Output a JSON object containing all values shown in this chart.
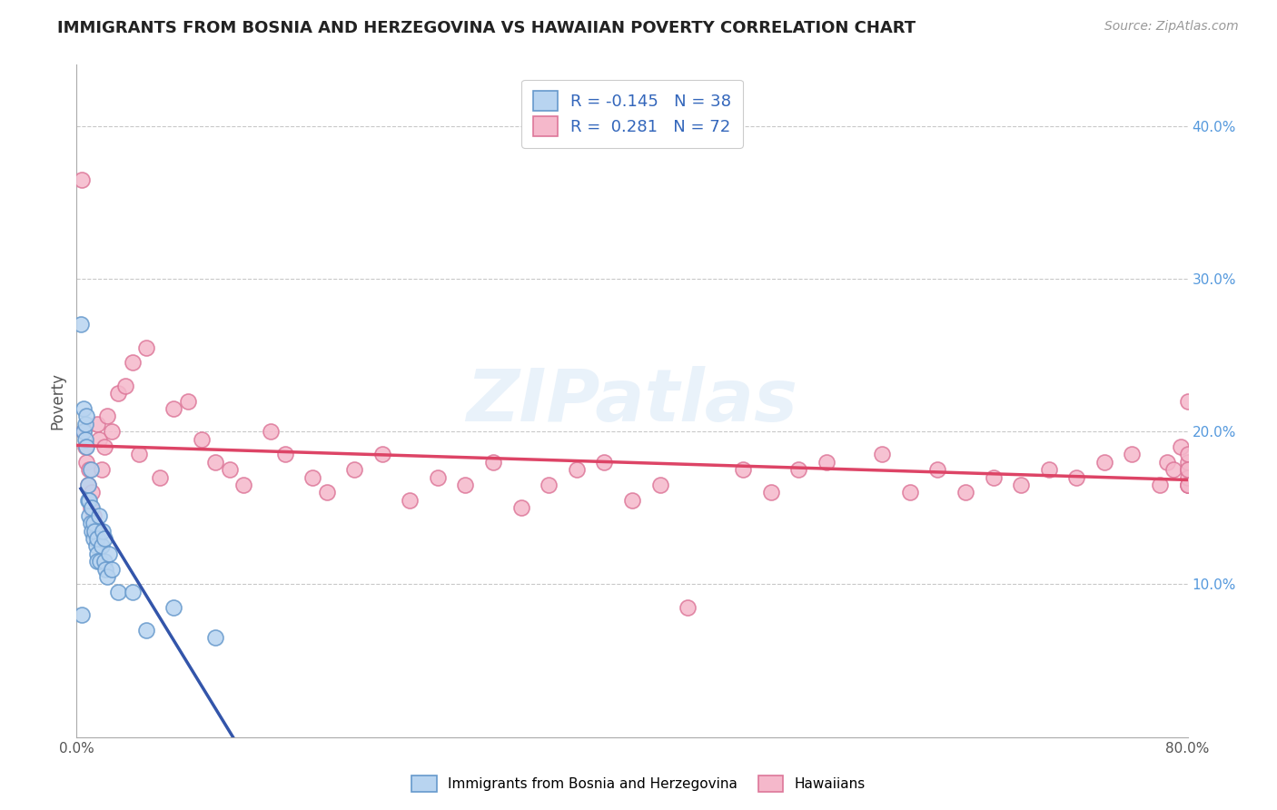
{
  "title": "IMMIGRANTS FROM BOSNIA AND HERZEGOVINA VS HAWAIIAN POVERTY CORRELATION CHART",
  "source_text": "Source: ZipAtlas.com",
  "ylabel": "Poverty",
  "xlim": [
    0.0,
    80.0
  ],
  "ylim": [
    0.0,
    44.0
  ],
  "ytick_positions": [
    10,
    20,
    30,
    40
  ],
  "ytick_labels": [
    "10.0%",
    "20.0%",
    "30.0%",
    "40.0%"
  ],
  "legend_r1": "-0.145",
  "legend_n1": "38",
  "legend_r2": "0.281",
  "legend_n2": "72",
  "blue_color": "#b8d4f0",
  "blue_edge": "#6699cc",
  "pink_color": "#f5b8cb",
  "pink_edge": "#dd7799",
  "blue_line_color": "#3355aa",
  "pink_line_color": "#dd4466",
  "grid_color": "#bbbbbb",
  "background_color": "#ffffff",
  "watermark": "ZIPatlas",
  "blue_scatter_x": [
    0.3,
    0.4,
    0.5,
    0.5,
    0.6,
    0.6,
    0.7,
    0.7,
    0.8,
    0.8,
    0.9,
    0.9,
    1.0,
    1.0,
    1.1,
    1.1,
    1.2,
    1.2,
    1.3,
    1.4,
    1.5,
    1.5,
    1.5,
    1.6,
    1.7,
    1.8,
    1.9,
    2.0,
    2.0,
    2.1,
    2.2,
    2.3,
    2.5,
    3.0,
    4.0,
    5.0,
    7.0,
    10.0
  ],
  "blue_scatter_y": [
    27.0,
    8.0,
    20.0,
    21.5,
    19.5,
    20.5,
    19.0,
    21.0,
    15.5,
    16.5,
    14.5,
    15.5,
    14.0,
    17.5,
    13.5,
    15.0,
    13.0,
    14.0,
    13.5,
    12.5,
    12.0,
    13.0,
    11.5,
    14.5,
    11.5,
    12.5,
    13.5,
    11.5,
    13.0,
    11.0,
    10.5,
    12.0,
    11.0,
    9.5,
    9.5,
    7.0,
    8.5,
    6.5
  ],
  "pink_scatter_x": [
    0.4,
    0.5,
    0.6,
    0.7,
    0.8,
    0.9,
    1.0,
    1.1,
    1.2,
    1.3,
    1.5,
    1.6,
    1.8,
    2.0,
    2.2,
    2.5,
    3.0,
    3.5,
    4.0,
    4.5,
    5.0,
    6.0,
    7.0,
    8.0,
    9.0,
    10.0,
    11.0,
    12.0,
    14.0,
    15.0,
    17.0,
    18.0,
    20.0,
    22.0,
    24.0,
    26.0,
    28.0,
    30.0,
    32.0,
    34.0,
    36.0,
    38.0,
    40.0,
    42.0,
    44.0,
    48.0,
    50.0,
    52.0,
    54.0,
    58.0,
    60.0,
    62.0,
    64.0,
    66.0,
    68.0,
    70.0,
    72.0,
    74.0,
    76.0,
    78.0,
    78.5,
    79.0,
    79.5,
    80.0,
    80.0,
    80.0,
    80.0,
    80.0,
    80.0,
    80.0,
    80.0,
    80.0
  ],
  "pink_scatter_y": [
    36.5,
    20.0,
    19.0,
    18.0,
    16.5,
    17.5,
    15.0,
    16.0,
    14.5,
    13.5,
    20.5,
    19.5,
    17.5,
    19.0,
    21.0,
    20.0,
    22.5,
    23.0,
    24.5,
    18.5,
    25.5,
    17.0,
    21.5,
    22.0,
    19.5,
    18.0,
    17.5,
    16.5,
    20.0,
    18.5,
    17.0,
    16.0,
    17.5,
    18.5,
    15.5,
    17.0,
    16.5,
    18.0,
    15.0,
    16.5,
    17.5,
    18.0,
    15.5,
    16.5,
    8.5,
    17.5,
    16.0,
    17.5,
    18.0,
    18.5,
    16.0,
    17.5,
    16.0,
    17.0,
    16.5,
    17.5,
    17.0,
    18.0,
    18.5,
    16.5,
    18.0,
    17.5,
    19.0,
    16.5,
    17.5,
    18.0,
    16.5,
    18.5,
    17.0,
    16.5,
    17.5,
    22.0
  ]
}
